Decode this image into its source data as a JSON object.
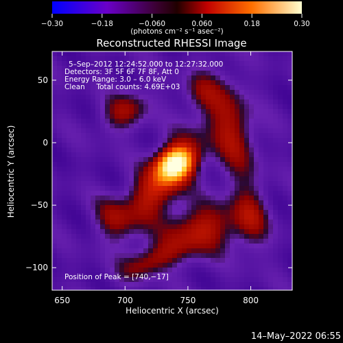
{
  "chart_data": {
    "type": "heatmap",
    "title": "Reconstructed RHESSI Image",
    "xlabel": "Heliocentric X (arcsec)",
    "ylabel": "Heliocentric Y (arcsec)",
    "xlim": [
      642,
      833
    ],
    "ylim": [
      -118,
      73
    ],
    "x_ticks": [
      650,
      700,
      750,
      800
    ],
    "y_ticks": [
      50,
      0,
      -50,
      -100
    ],
    "x_tick_labels": [
      "650",
      "700",
      "750",
      "800"
    ],
    "y_tick_labels": [
      "50",
      "0",
      "−50",
      "−100"
    ],
    "colorbar": {
      "range": [
        -0.3,
        0.3
      ],
      "ticks": [
        -0.3,
        -0.18,
        -0.06,
        0.06,
        0.18,
        0.3
      ],
      "tick_labels": [
        "−0.30",
        "−0.18",
        "−0.060",
        "0.060",
        "0.18",
        "0.30"
      ],
      "unit_label": "(photons cm⁻² s⁻¹ asec⁻²)"
    },
    "peak": {
      "x": 740,
      "y": -17
    },
    "annotations": {
      "time": "5–Sep–2012 12:24:52.000 to 12:27:32.000",
      "detectors": "Detectors: 3F 5F 6F 7F 8F, Att 0",
      "energy": "Energy Range: 3.0 – 6.0 keV",
      "method": "Clean     Total counts: 4.69E+03",
      "peak_text": "Position of Peak = [740,−17]"
    }
  },
  "footer_timestamp": "14–May–2022 06:55"
}
